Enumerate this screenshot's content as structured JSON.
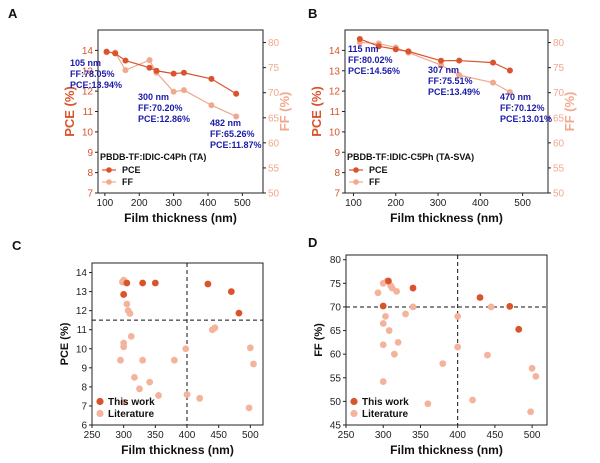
{
  "colors": {
    "pce": "#d9532c",
    "ff": "#f2a88c",
    "lit": "#f4b49c",
    "work": "#d9532c",
    "annot": "#1a1aaa",
    "axis": "#222222"
  },
  "chart_data": [
    {
      "id": "A",
      "panel_label": "A",
      "type": "line",
      "xlabel": "Film thickness (nm)",
      "ylabel": "PCE (%)",
      "y2label": "FF (%)",
      "xlim": [
        80,
        560
      ],
      "ylim": [
        7,
        15
      ],
      "y2lim": [
        50,
        82.5
      ],
      "xticks": [
        100,
        200,
        300,
        400,
        500
      ],
      "yticks": [
        7,
        8,
        9,
        10,
        11,
        12,
        13,
        14
      ],
      "y2ticks": [
        50,
        55,
        60,
        65,
        70,
        75,
        80
      ],
      "legend_title": "PBDB-TF:IDIC-C4Ph (TA)",
      "series": [
        {
          "name": "PCE",
          "axis": "left",
          "color": "#d9532c",
          "x": [
            105,
            130,
            160,
            230,
            250,
            300,
            330,
            410,
            482
          ],
          "y": [
            13.94,
            13.85,
            13.5,
            13.15,
            13.0,
            12.86,
            12.9,
            12.6,
            11.87
          ]
        },
        {
          "name": "FF",
          "axis": "right",
          "color": "#f2a88c",
          "x": [
            105,
            130,
            160,
            230,
            250,
            300,
            330,
            410,
            482
          ],
          "y": [
            78.05,
            78.0,
            74.5,
            76.5,
            74.0,
            70.2,
            70.5,
            67.5,
            65.26
          ]
        }
      ],
      "annotations": [
        {
          "lines": [
            "105 nm",
            "FF:78.05%",
            "PCE:13.94%"
          ]
        },
        {
          "lines": [
            "300 nm",
            "FF:70.20%",
            "PCE:12.86%"
          ]
        },
        {
          "lines": [
            "482 nm",
            "FF:65.26%",
            "PCE:11.87%"
          ]
        }
      ]
    },
    {
      "id": "B",
      "panel_label": "B",
      "type": "line",
      "xlabel": "Film thickness (nm)",
      "ylabel": "PCE (%)",
      "y2label": "FF (%)",
      "xlim": [
        80,
        560
      ],
      "ylim": [
        7,
        15
      ],
      "y2lim": [
        50,
        82.5
      ],
      "xticks": [
        100,
        200,
        300,
        400,
        500
      ],
      "yticks": [
        7,
        8,
        9,
        10,
        11,
        12,
        13,
        14
      ],
      "y2ticks": [
        50,
        55,
        60,
        65,
        70,
        75,
        80
      ],
      "legend_title": "PBDB-TF:IDIC-C5Ph (TA-SVA)",
      "series": [
        {
          "name": "PCE",
          "axis": "left",
          "color": "#d9532c",
          "x": [
            115,
            160,
            200,
            230,
            307,
            350,
            430,
            470
          ],
          "y": [
            14.56,
            14.2,
            14.05,
            13.95,
            13.49,
            13.5,
            13.4,
            13.01
          ]
        },
        {
          "name": "FF",
          "axis": "right",
          "color": "#f2a88c",
          "x": [
            115,
            160,
            200,
            230,
            307,
            350,
            430,
            470
          ],
          "y": [
            80.02,
            79.8,
            79.0,
            78.0,
            75.51,
            73.5,
            72.0,
            70.12
          ]
        }
      ],
      "annotations": [
        {
          "lines": [
            "115 nm",
            "FF:80.02%",
            "PCE:14.56%"
          ]
        },
        {
          "lines": [
            "307 nm",
            "FF:75.51%",
            "PCE:13.49%"
          ]
        },
        {
          "lines": [
            "470 nm",
            "FF:70.12%",
            "PCE:13.01%"
          ]
        }
      ]
    },
    {
      "id": "C",
      "panel_label": "C",
      "type": "scatter",
      "xlabel": "Film thickness (nm)",
      "ylabel": "PCE (%)",
      "xlim": [
        250,
        520
      ],
      "ylim": [
        6,
        14.5
      ],
      "xticks": [
        250,
        300,
        350,
        400,
        450,
        500
      ],
      "yticks": [
        6,
        7,
        8,
        9,
        10,
        11,
        12,
        13,
        14
      ],
      "ref_lines": {
        "x": 400,
        "y": 11.5
      },
      "series": [
        {
          "name": "This work",
          "color": "#d9532c",
          "x": [
            300,
            305,
            350,
            330,
            433,
            470,
            482
          ],
          "y": [
            12.85,
            13.45,
            13.45,
            13.45,
            13.4,
            13.0,
            11.87
          ]
        },
        {
          "name": "Literature",
          "color": "#f4b49c",
          "x": [
            300,
            298,
            305,
            307,
            310,
            300,
            300,
            295,
            312,
            317,
            325,
            330,
            341,
            355,
            380,
            398,
            400,
            420,
            440,
            444,
            500,
            505,
            498,
            300
          ],
          "y": [
            13.6,
            13.5,
            12.35,
            12.0,
            11.85,
            10.3,
            10.1,
            9.4,
            10.65,
            8.5,
            7.9,
            9.4,
            8.25,
            7.55,
            9.4,
            10.0,
            7.6,
            7.4,
            11.0,
            11.1,
            10.05,
            9.2,
            6.9,
            7.2
          ]
        }
      ]
    },
    {
      "id": "D",
      "panel_label": "D",
      "type": "scatter",
      "xlabel": "Film thickness (nm)",
      "ylabel": "FF (%)",
      "xlim": [
        250,
        520
      ],
      "ylim": [
        45,
        81
      ],
      "xticks": [
        250,
        300,
        350,
        400,
        450,
        500
      ],
      "yticks": [
        45,
        50,
        55,
        60,
        65,
        70,
        75,
        80
      ],
      "ref_lines": {
        "x": 400,
        "y": 70
      },
      "series": [
        {
          "name": "This work",
          "color": "#d9532c",
          "x": [
            300,
            307,
            340,
            430,
            470,
            482
          ],
          "y": [
            70.2,
            75.5,
            74.0,
            72.0,
            70.12,
            65.26
          ]
        },
        {
          "name": "Literature",
          "color": "#f4b49c",
          "x": [
            300,
            305,
            310,
            312,
            318,
            303,
            300,
            308,
            320,
            315,
            330,
            340,
            360,
            380,
            400,
            400,
            420,
            440,
            445,
            500,
            505,
            498,
            300,
            300,
            293
          ],
          "y": [
            75.0,
            75.5,
            74.5,
            74.0,
            73.3,
            68.0,
            66.5,
            65.0,
            62.5,
            60.0,
            68.5,
            70.0,
            49.5,
            58.0,
            68.0,
            61.5,
            50.3,
            59.8,
            70.0,
            57.0,
            55.3,
            47.8,
            54.2,
            62.0,
            73.0
          ]
        }
      ]
    }
  ]
}
